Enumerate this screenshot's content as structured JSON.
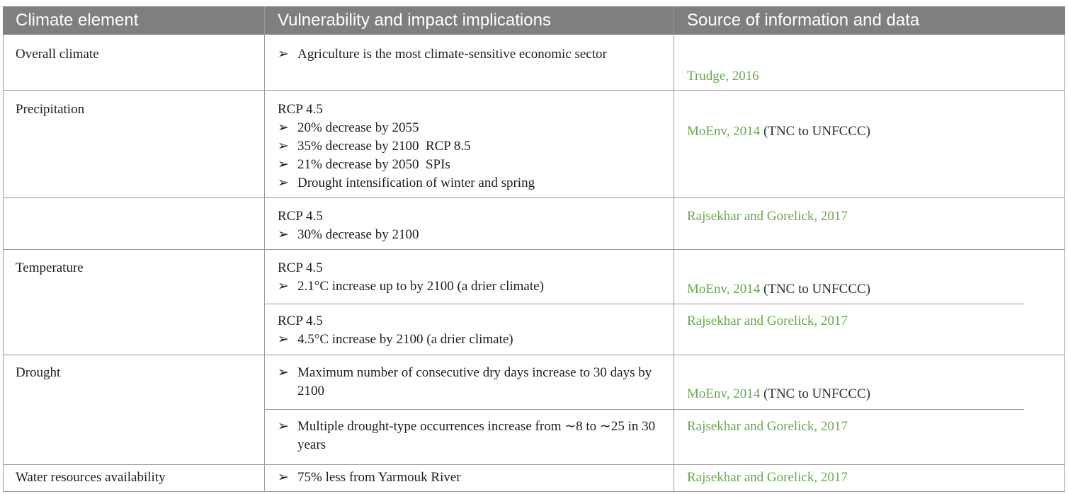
{
  "header": {
    "col1": "Climate element",
    "col2": "Vulnerability and impact implications",
    "col3": "Source of information and data"
  },
  "bullet": "➢",
  "rows": [
    {
      "element": "Overall climate",
      "items": [
        "Agriculture is the most climate-sensitive economic sector"
      ],
      "source_link": "Trudge, 2016",
      "source_text": ""
    },
    {
      "element": "Precipitation",
      "heading": "RCP 4.5",
      "items": [
        "20% decrease by 2055",
        "35% decrease by 2100  RCP 8.5",
        "21% decrease by 2050  SPIs",
        "Drought intensification of winter and spring"
      ],
      "source_link": "MoEnv, 2014",
      "source_text": " (TNC to UNFCCC)"
    },
    {
      "element": "",
      "heading": "RCP 4.5",
      "items": [
        "30% decrease by 2100"
      ],
      "source_link": "Rajsekhar and Gorelick, 2017",
      "source_text": ""
    },
    {
      "element": "Temperature",
      "sub": [
        {
          "heading": "RCP 4.5",
          "items": [
            "2.1°C increase up to by 2100 (a drier climate)"
          ],
          "source_link": "MoEnv, 2014",
          "source_text": " (TNC to UNFCCC)"
        },
        {
          "heading": "RCP 4.5",
          "items": [
            "4.5°C increase by 2100 (a drier climate)"
          ],
          "source_link": "Rajsekhar and Gorelick, 2017",
          "source_text": ""
        }
      ]
    },
    {
      "element": "Drought",
      "sub": [
        {
          "items": [
            "Maximum number of consecutive dry days increase to 30 days by 2100"
          ],
          "source_link": "MoEnv, 2014",
          "source_text": " (TNC to UNFCCC)"
        },
        {
          "items": [
            "Multiple drought-type occurrences increase from ∼8 to ∼25 in 30 years"
          ],
          "source_link": "Rajsekhar and Gorelick, 2017",
          "source_text": ""
        }
      ]
    },
    {
      "element": "Water resources availability",
      "items": [
        "75% less from Yarmouk River"
      ],
      "source_link": "Rajsekhar and Gorelick, 2017",
      "source_text": ""
    }
  ]
}
